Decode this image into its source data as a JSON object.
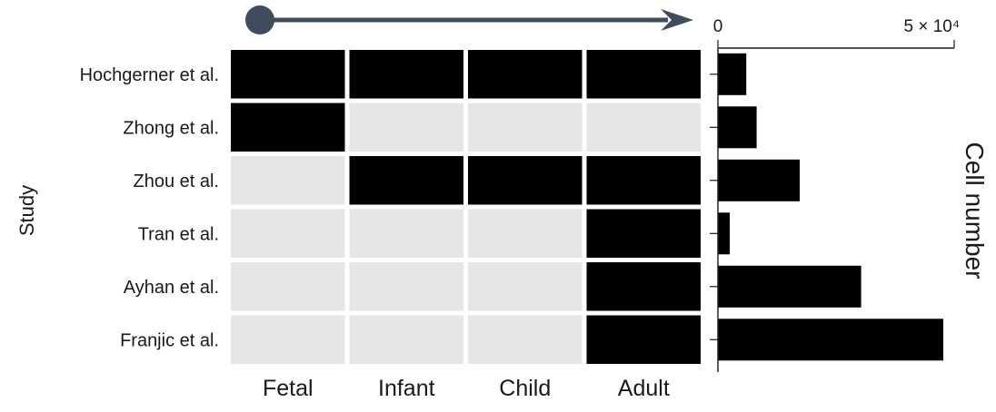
{
  "chart_data": [
    {
      "type": "heatmap",
      "ylabel": "Study",
      "rows": [
        "Hochgerner et al.",
        "Zhong et al.",
        "Zhou et al.",
        "Tran et al.",
        "Ayhan et al.",
        "Franjic et al."
      ],
      "columns": [
        "Fetal",
        "Infant",
        "Child",
        "Adult"
      ],
      "values": [
        [
          1,
          1,
          1,
          1
        ],
        [
          1,
          0,
          0,
          0
        ],
        [
          0,
          1,
          1,
          1
        ],
        [
          0,
          0,
          0,
          1
        ],
        [
          0,
          0,
          0,
          1
        ],
        [
          0,
          0,
          0,
          1
        ]
      ],
      "colors": {
        "present": "#000000",
        "absent": "#e6e6e6",
        "arrow": "#3f4c5d"
      }
    },
    {
      "type": "bar",
      "orientation": "horizontal",
      "xlabel": "Cell number",
      "categories": [
        "Hochgerner et al.",
        "Zhong et al.",
        "Zhou et al.",
        "Tran et al.",
        "Ayhan et al.",
        "Franjic et al."
      ],
      "values": [
        6000,
        8200,
        17300,
        2500,
        30300,
        47700
      ],
      "xlim": [
        0,
        50000
      ],
      "ticks": [
        {
          "value": 0,
          "label": "0"
        },
        {
          "value": 50000,
          "label": "5 × 10⁴"
        }
      ],
      "bar_color": "#000000"
    }
  ]
}
